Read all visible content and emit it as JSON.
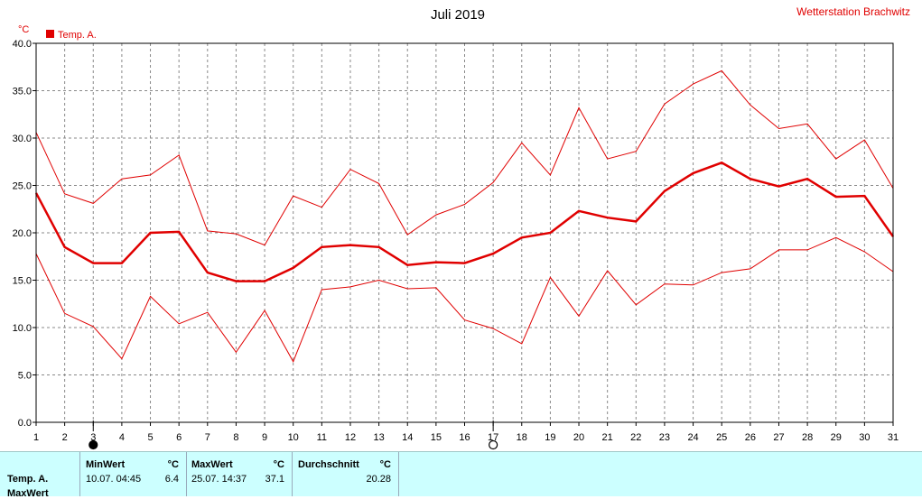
{
  "page": {
    "station": "Wetterstation Brachwitz"
  },
  "chart_data": {
    "type": "line",
    "title": "Juli 2019",
    "ylabel": "°C",
    "xlabel": "",
    "ylim": [
      0,
      40
    ],
    "yticks": [
      "0.0",
      "5.0",
      "10.0",
      "15.0",
      "20.0",
      "25.0",
      "30.0",
      "35.0",
      "40.0"
    ],
    "x": [
      1,
      2,
      3,
      4,
      5,
      6,
      7,
      8,
      9,
      10,
      11,
      12,
      13,
      14,
      15,
      16,
      17,
      18,
      19,
      20,
      21,
      22,
      23,
      24,
      25,
      26,
      27,
      28,
      29,
      30,
      31
    ],
    "legend": [
      {
        "name": "Temp. A.",
        "color": "#e00000"
      }
    ],
    "grid": true,
    "series": [
      {
        "name": "Temp. A.",
        "role": "avg",
        "values": [
          24.2,
          18.5,
          16.8,
          16.8,
          20.0,
          20.1,
          15.8,
          14.9,
          14.9,
          16.3,
          18.5,
          18.7,
          18.5,
          16.6,
          16.9,
          16.8,
          17.8,
          19.5,
          20.0,
          22.3,
          21.6,
          21.2,
          24.4,
          26.3,
          27.4,
          25.7,
          24.9,
          25.7,
          23.8,
          23.9,
          19.6
        ]
      },
      {
        "role": "max",
        "values": [
          30.6,
          24.1,
          23.1,
          25.7,
          26.1,
          28.2,
          20.2,
          19.9,
          18.7,
          23.9,
          22.7,
          26.7,
          25.2,
          19.8,
          21.9,
          23.0,
          25.3,
          29.5,
          26.1,
          33.2,
          27.8,
          28.6,
          33.6,
          35.7,
          37.1,
          33.5,
          31.0,
          31.5,
          27.8,
          29.8,
          24.7
        ]
      },
      {
        "role": "min",
        "values": [
          17.8,
          11.5,
          10.1,
          6.7,
          13.3,
          10.4,
          11.6,
          7.4,
          11.8,
          6.4,
          14.0,
          14.3,
          15.0,
          14.1,
          14.2,
          10.8,
          9.9,
          8.3,
          15.3,
          11.2,
          16.0,
          12.4,
          14.6,
          14.5,
          15.8,
          16.2,
          18.2,
          18.2,
          19.5,
          18.0,
          15.9
        ]
      }
    ],
    "markers": [
      {
        "day": 3,
        "kind": "new-moon"
      },
      {
        "day": 17,
        "kind": "full-moon"
      }
    ]
  },
  "stats": {
    "row_labels": [
      "Temp. A.",
      "MaxWert"
    ],
    "min": {
      "header": "MinWert",
      "unit": "°C",
      "time": "10.07.  04:45",
      "value": "6.4"
    },
    "max": {
      "header": "MaxWert",
      "unit": "°C",
      "time": "25.07.  14:37",
      "value": "37.1"
    },
    "avg": {
      "header": "Durchschnitt",
      "unit": "°C",
      "value": "20.28"
    }
  }
}
